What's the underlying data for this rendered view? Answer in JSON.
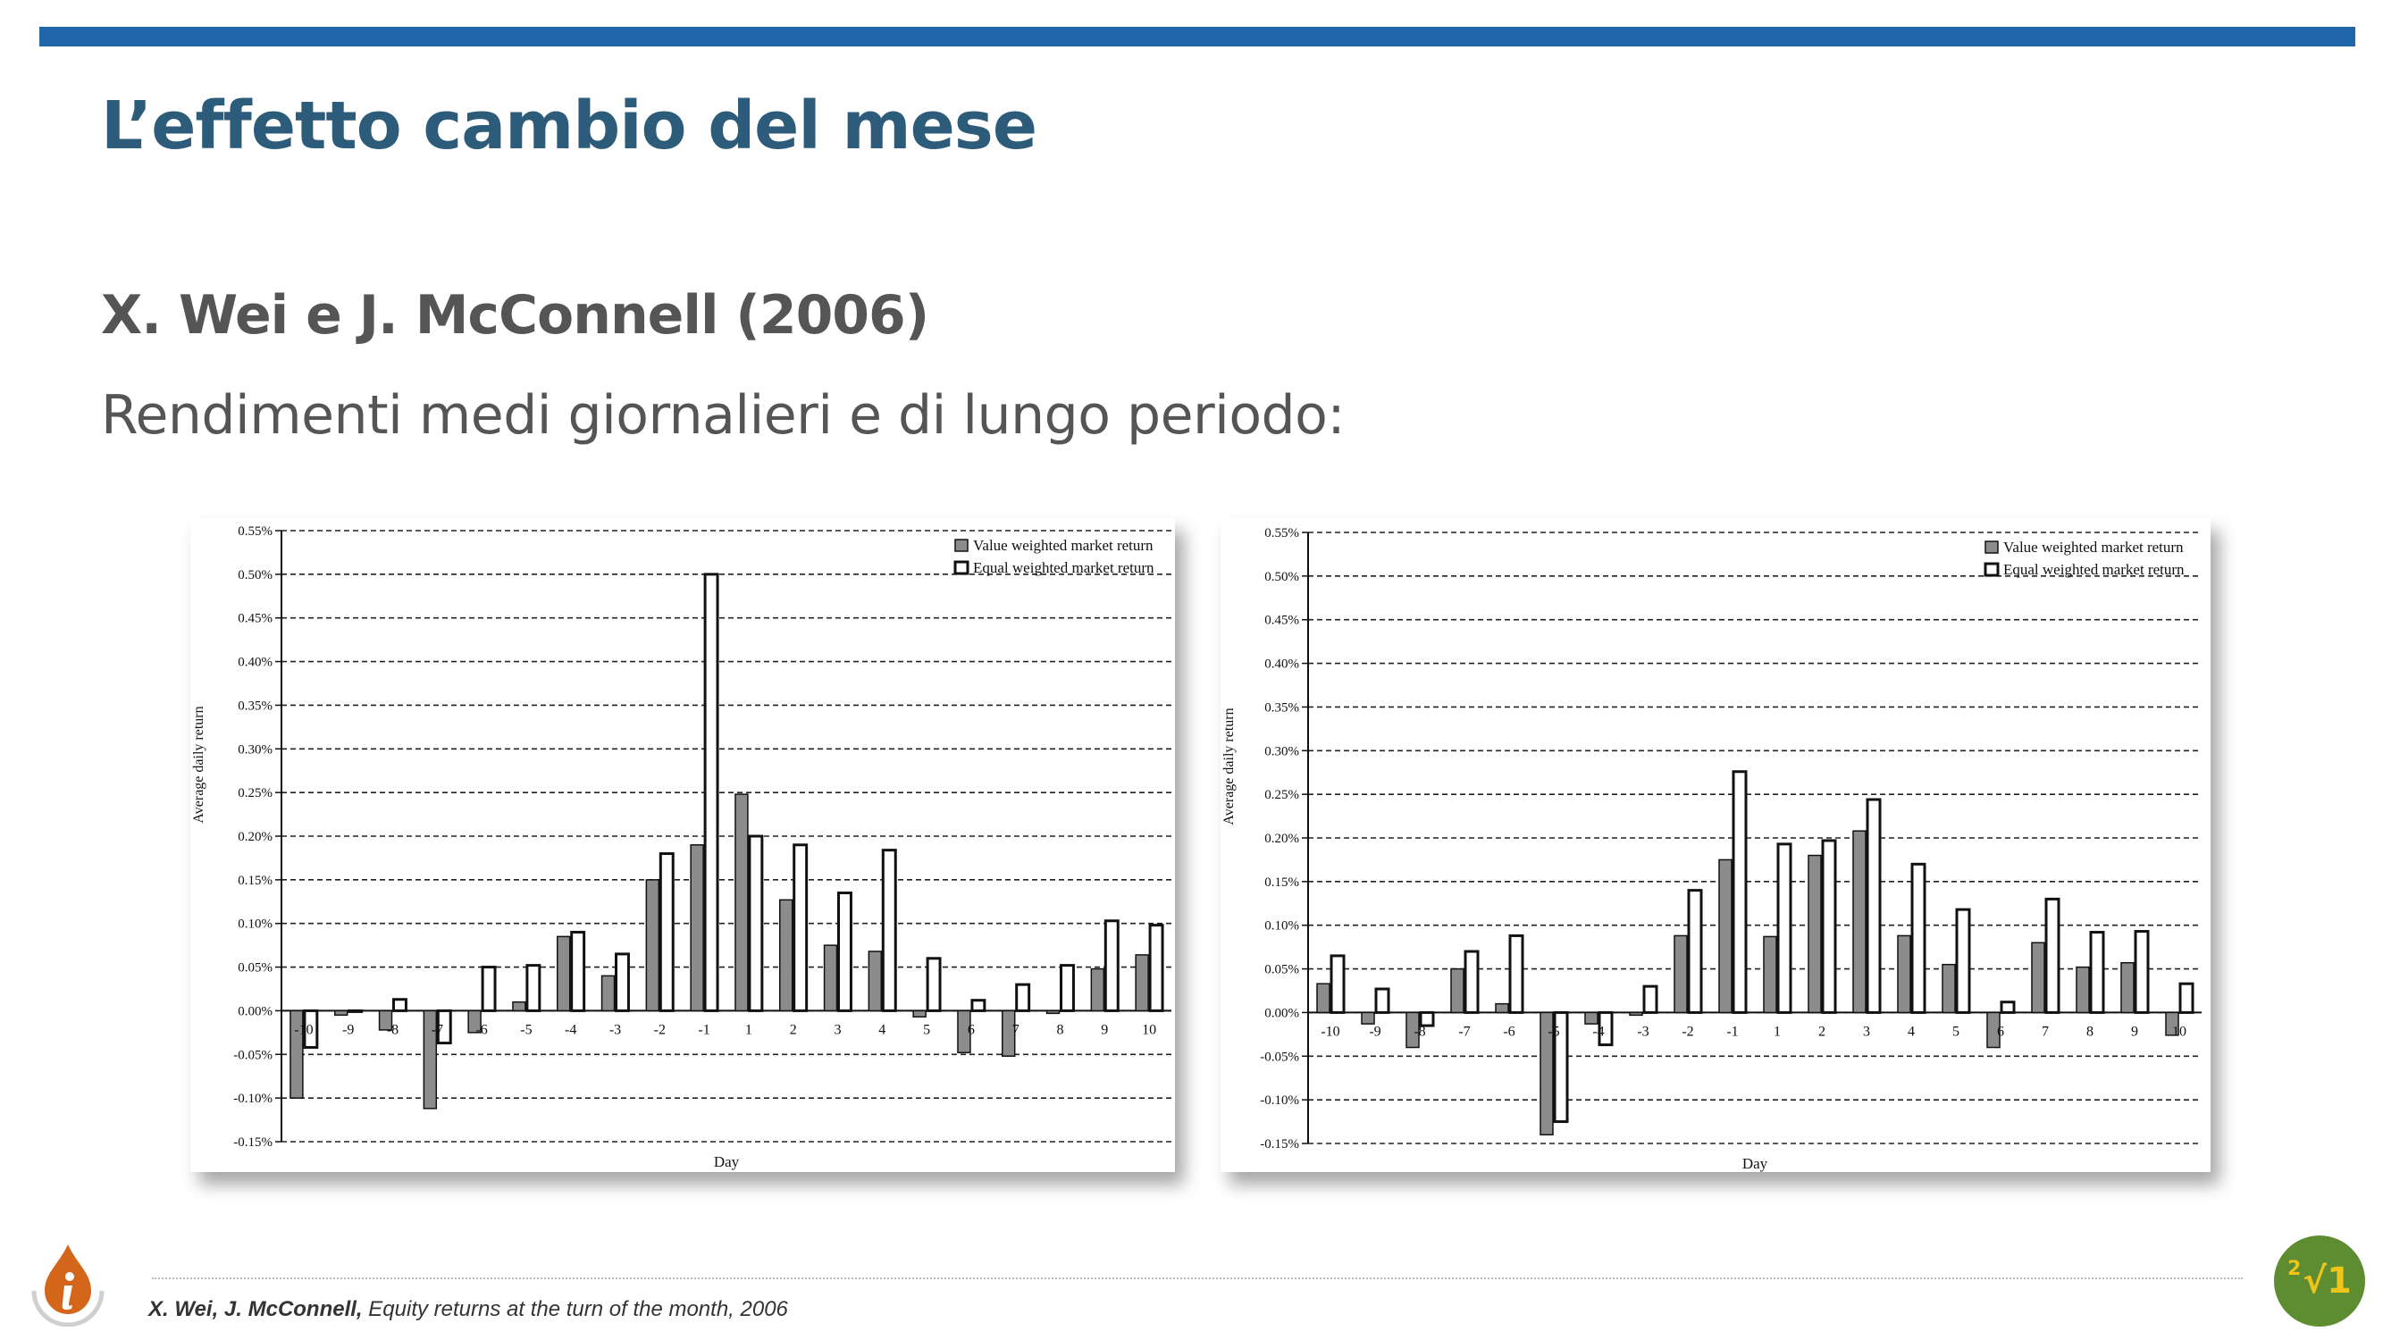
{
  "slide": {
    "title": "L’effetto cambio del mese",
    "subtitle": "X. Wei e J. McConnell (2006)",
    "body": "Rendimenti medi giornalieri e di lungo periodo:",
    "citation_authors": "X. Wei, J. McConnell,",
    "citation_work": "Equity returns at the turn of the month, 2006",
    "math_logo_exp": "2",
    "math_logo_text": "√1",
    "info_icon": "info-icon",
    "math_icon": "root-icon"
  },
  "colors": {
    "top_bar": "#1f67a8",
    "title": "#2d5b7a",
    "text": "#555555",
    "value_bar": "#8c8c8c",
    "equal_bar": "#ffffff",
    "info_logo": "#d4661c",
    "math_logo": "#5e8c31"
  },
  "chart_data": [
    {
      "type": "bar",
      "xlabel": "Day",
      "ylabel": "Average daily return",
      "ylim": [
        -0.15,
        0.55
      ],
      "yticks": [
        "0.55%",
        "0.50%",
        "0.45%",
        "0.40%",
        "0.35%",
        "0.30%",
        "0.25%",
        "0.20%",
        "0.15%",
        "0.10%",
        "0.05%",
        "0.00%",
        "-0.05%",
        "-0.10%",
        "-0.15%"
      ],
      "grid": true,
      "legend_position": "top-right",
      "categories": [
        "-10",
        "-9",
        "-8",
        "-7",
        "-6",
        "-5",
        "-4",
        "-3",
        "-2",
        "-1",
        "1",
        "2",
        "3",
        "4",
        "5",
        "6",
        "7",
        "8",
        "9",
        "10"
      ],
      "series": [
        {
          "name": "Value weighted market return",
          "values": [
            -0.1,
            -0.005,
            -0.022,
            -0.112,
            -0.025,
            0.01,
            0.085,
            0.04,
            0.15,
            0.19,
            0.248,
            0.127,
            0.075,
            0.068,
            -0.007,
            -0.048,
            -0.052,
            -0.003,
            0.048,
            0.064
          ]
        },
        {
          "name": "Equal weighted market return",
          "values": [
            -0.042,
            0.0,
            0.013,
            -0.037,
            0.05,
            0.052,
            0.09,
            0.065,
            0.18,
            0.5,
            0.2,
            0.19,
            0.135,
            0.184,
            0.06,
            0.012,
            0.03,
            0.052,
            0.103,
            0.098
          ]
        }
      ]
    },
    {
      "type": "bar",
      "xlabel": "Day",
      "ylabel": "Average daily return",
      "ylim": [
        -0.15,
        0.55
      ],
      "yticks": [
        "0.55%",
        "0.50%",
        "0.45%",
        "0.40%",
        "0.35%",
        "0.30%",
        "0.25%",
        "0.20%",
        "0.15%",
        "0.10%",
        "0.05%",
        "0.00%",
        "-0.05%",
        "-0.10%",
        "-0.15%"
      ],
      "grid": true,
      "legend_position": "top-right",
      "categories": [
        "-10",
        "-9",
        "-8",
        "-7",
        "-6",
        "-5",
        "-4",
        "-3",
        "-2",
        "-1",
        "1",
        "2",
        "3",
        "4",
        "5",
        "6",
        "7",
        "8",
        "9",
        "10"
      ],
      "series": [
        {
          "name": "Value weighted market return",
          "values": [
            0.033,
            -0.013,
            -0.04,
            0.05,
            0.01,
            -0.14,
            -0.013,
            -0.003,
            0.088,
            0.175,
            0.087,
            0.18,
            0.208,
            0.088,
            0.055,
            -0.04,
            0.08,
            0.052,
            0.057,
            -0.026
          ]
        },
        {
          "name": "Equal weighted market return",
          "values": [
            0.065,
            0.027,
            -0.015,
            0.07,
            0.088,
            -0.125,
            -0.037,
            0.03,
            0.14,
            0.276,
            0.193,
            0.197,
            0.244,
            0.17,
            0.118,
            0.012,
            0.13,
            0.092,
            0.093,
            0.033
          ]
        }
      ]
    }
  ]
}
